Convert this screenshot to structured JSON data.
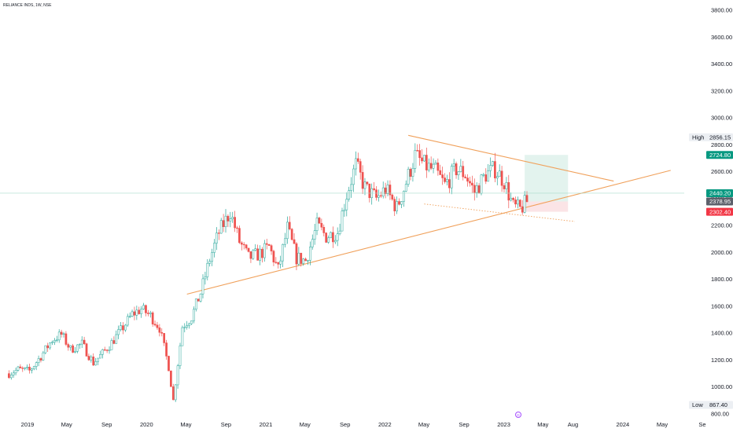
{
  "title": "RELIANCE INDS, 1W, NSE",
  "colors": {
    "up": "#26a69a",
    "down": "#ef5350",
    "trendline": "#f0a05a",
    "target_zone": "#e3f3ee",
    "stop_zone": "#fbe4e6",
    "price_line": "#a8dccb"
  },
  "chart_data": {
    "type": "candlestick",
    "title": "RELIANCE INDS, 1W, NSE",
    "ylim": [
      780,
      3880
    ],
    "yticks": [
      800,
      1000,
      1200,
      1400,
      1600,
      1800,
      2000,
      2200,
      2400,
      2600,
      2800,
      3000,
      3200,
      3400,
      3600,
      3800
    ],
    "xticks": [
      "2019",
      "May",
      "Sep",
      "2020",
      "May",
      "Sep",
      "2021",
      "May",
      "Sep",
      "2022",
      "May",
      "Sep",
      "2023",
      "May",
      "Aug",
      "2024",
      "May",
      "Se"
    ],
    "xtick_dates": [
      "2019-01-01",
      "2019-05-01",
      "2019-09-01",
      "2020-01-01",
      "2020-05-01",
      "2020-09-01",
      "2021-01-01",
      "2021-05-01",
      "2021-09-01",
      "2022-01-01",
      "2022-05-01",
      "2022-09-01",
      "2023-01-01",
      "2023-05-01",
      "2023-08-01",
      "2024-01-01",
      "2024-05-01",
      "2024-09-01"
    ],
    "price_path": [
      [
        "2018-11-05",
        1100
      ],
      [
        "2018-12-03",
        1130
      ],
      [
        "2019-01-07",
        1120
      ],
      [
        "2019-02-11",
        1230
      ],
      [
        "2019-03-18",
        1350
      ],
      [
        "2019-04-15",
        1390
      ],
      [
        "2019-05-13",
        1280
      ],
      [
        "2019-06-17",
        1320
      ],
      [
        "2019-07-22",
        1180
      ],
      [
        "2019-08-19",
        1250
      ],
      [
        "2019-09-16",
        1330
      ],
      [
        "2019-10-14",
        1420
      ],
      [
        "2019-11-18",
        1540
      ],
      [
        "2019-12-16",
        1580
      ],
      [
        "2020-01-13",
        1530
      ],
      [
        "2020-02-10",
        1440
      ],
      [
        "2020-03-09",
        1150
      ],
      [
        "2020-03-23",
        900
      ],
      [
        "2020-04-20",
        1450
      ],
      [
        "2020-05-18",
        1520
      ],
      [
        "2020-06-15",
        1700
      ],
      [
        "2020-07-13",
        1950
      ],
      [
        "2020-08-10",
        2150
      ],
      [
        "2020-09-14",
        2300
      ],
      [
        "2020-10-12",
        2080
      ],
      [
        "2020-11-09",
        1960
      ],
      [
        "2020-12-14",
        1990
      ],
      [
        "2021-01-11",
        2040
      ],
      [
        "2021-02-08",
        1870
      ],
      [
        "2021-03-08",
        2180
      ],
      [
        "2021-04-05",
        1960
      ],
      [
        "2021-05-03",
        1940
      ],
      [
        "2021-06-07",
        2200
      ],
      [
        "2021-07-05",
        2120
      ],
      [
        "2021-08-09",
        2150
      ],
      [
        "2021-09-06",
        2430
      ],
      [
        "2021-10-04",
        2650
      ],
      [
        "2021-11-01",
        2480
      ],
      [
        "2021-12-06",
        2400
      ],
      [
        "2022-01-03",
        2470
      ],
      [
        "2022-02-07",
        2330
      ],
      [
        "2022-03-07",
        2520
      ],
      [
        "2022-04-04",
        2720
      ],
      [
        "2022-05-02",
        2650
      ],
      [
        "2022-06-06",
        2600
      ],
      [
        "2022-07-04",
        2500
      ],
      [
        "2022-08-08",
        2620
      ],
      [
        "2022-09-05",
        2580
      ],
      [
        "2022-10-03",
        2450
      ],
      [
        "2022-11-07",
        2580
      ],
      [
        "2022-12-05",
        2620
      ],
      [
        "2023-01-02",
        2530
      ],
      [
        "2023-01-30",
        2340
      ],
      [
        "2023-02-20",
        2320
      ],
      [
        "2023-03-13",
        2378.95
      ]
    ],
    "trendlines": [
      {
        "from": [
          "2020-05-04",
          1690
        ],
        "to": [
          "2024-05-27",
          2610
        ],
        "style": "solid"
      },
      {
        "from": [
          "2022-03-14",
          2870
        ],
        "to": [
          "2023-12-04",
          2530
        ],
        "style": "solid"
      },
      {
        "from": [
          "2022-05-02",
          2360
        ],
        "to": [
          "2023-08-07",
          2230
        ],
        "style": "dotted"
      }
    ],
    "position": {
      "start": "2023-03-06",
      "end": "2023-07-17",
      "entry": 2378.95,
      "target": 2724.8,
      "stop": 2302.4
    },
    "current_price": 2440.2,
    "high": {
      "label": "High",
      "value": "2856.15"
    },
    "low": {
      "label": "Low",
      "value": "867.40"
    },
    "price_badges": [
      {
        "value": "2724.80",
        "color": "#089981",
        "price": 2724.8
      },
      {
        "value": "2440.20",
        "color": "#089981",
        "price": 2440.2
      },
      {
        "value": "2378.95",
        "color": "#5d606b",
        "price": 2378.95
      },
      {
        "value": "2302.40",
        "color": "#f23645",
        "price": 2302.4
      }
    ]
  }
}
